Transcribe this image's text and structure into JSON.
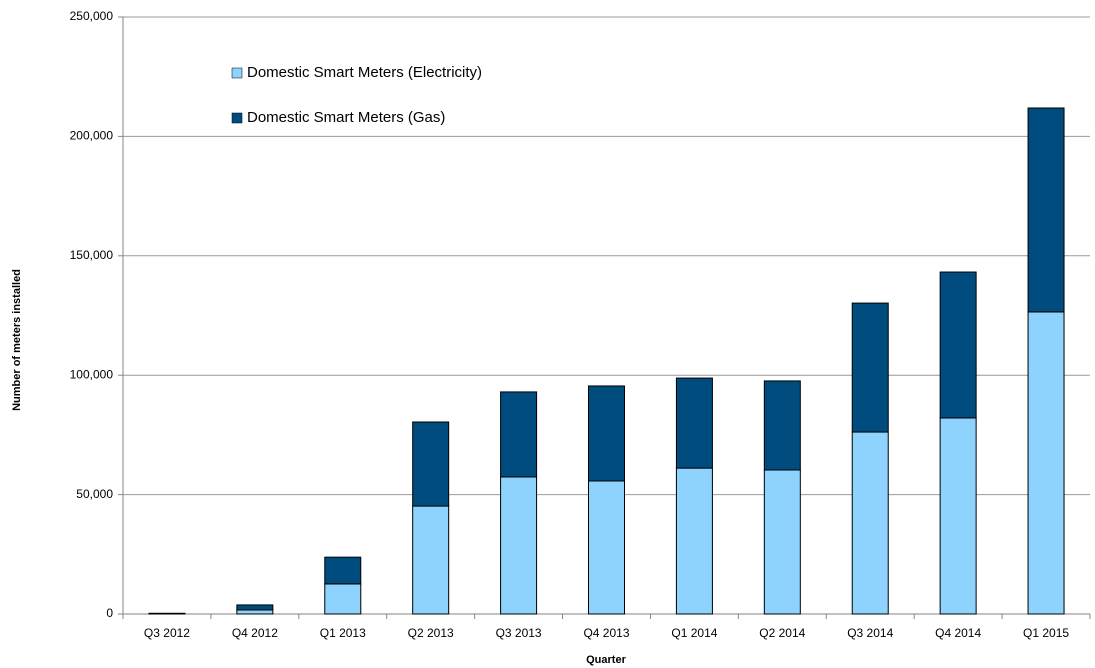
{
  "chart_data": {
    "type": "stacked_bar",
    "categories": [
      "Q3 2012",
      "Q4 2012",
      "Q1 2013",
      "Q2 2013",
      "Q3 2013",
      "Q4 2013",
      "Q1 2014",
      "Q2 2014",
      "Q3 2014",
      "Q4 2014",
      "Q1 2015"
    ],
    "series": [
      {
        "name": "Domestic Smart Meters (Electricity)",
        "color": "#8dd3fd",
        "values": [
          100,
          1700,
          12600,
          45200,
          57400,
          55700,
          61100,
          60300,
          76200,
          82100,
          126500
        ]
      },
      {
        "name": "Domestic Smart Meters (Gas)",
        "color": "#004c7e",
        "values": [
          200,
          2100,
          11200,
          35200,
          35600,
          39800,
          37700,
          37300,
          54000,
          61100,
          85400
        ]
      }
    ],
    "ylim": [
      0,
      250000
    ],
    "yticks": [
      0,
      {
        "value": 50000,
        "label": "50,000"
      },
      {
        "value": 100000,
        "label": "100,000"
      },
      {
        "value": 150000,
        "label": "150,000"
      },
      {
        "value": 200000,
        "label": "200,000"
      },
      {
        "value": 250000,
        "label": "250,000"
      }
    ],
    "y_label": "Number of meters installed",
    "x_label": "Quarter",
    "grid": true,
    "legend": "upper-left"
  }
}
